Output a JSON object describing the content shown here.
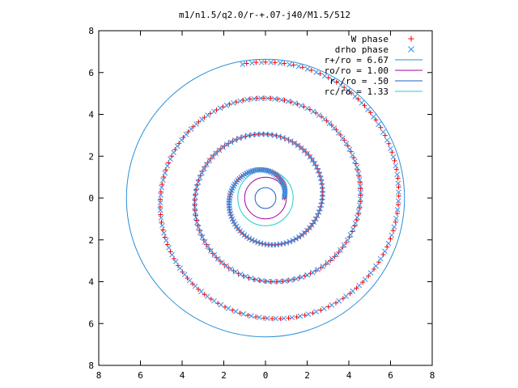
{
  "chart_data": {
    "type": "scatter",
    "title": "m1/n1.5/q2.0/r-+.07-j40/M1.5/512",
    "xlabel": "",
    "ylabel": "",
    "xlim": [
      -8,
      8
    ],
    "ylim": [
      -8,
      8
    ],
    "x_ticks": [
      {
        "value": -8,
        "label": "8"
      },
      {
        "value": -6,
        "label": "6"
      },
      {
        "value": -4,
        "label": "4"
      },
      {
        "value": -2,
        "label": "2"
      },
      {
        "value": 0,
        "label": "0"
      },
      {
        "value": 2,
        "label": "2"
      },
      {
        "value": 4,
        "label": "4"
      },
      {
        "value": 6,
        "label": "6"
      },
      {
        "value": 8,
        "label": "8"
      }
    ],
    "y_ticks": [
      {
        "value": 8,
        "label": "8"
      },
      {
        "value": 6,
        "label": "6"
      },
      {
        "value": 4,
        "label": "4"
      },
      {
        "value": 2,
        "label": "2"
      },
      {
        "value": 0,
        "label": "0"
      },
      {
        "value": -2,
        "label": "2"
      },
      {
        "value": -4,
        "label": "4"
      },
      {
        "value": -6,
        "label": "6"
      },
      {
        "value": -8,
        "label": "8"
      }
    ],
    "grid": false,
    "legend_position": "top-right",
    "spiral_series": [
      {
        "name": "W phase",
        "marker": "+",
        "color": "#ff0000",
        "phase_shift": 0
      },
      {
        "name": "drho phase",
        "marker": "x",
        "color": "#3a8ee6",
        "phase_shift": 0.03
      }
    ],
    "spiral_model": {
      "theta_start": 0,
      "theta_end": 20.6,
      "r_inner": 0.9,
      "r_outer": 6.62,
      "center_shift": [
        0.28,
        -0.08
      ],
      "samples": 300
    },
    "circle_series": [
      {
        "name": "r+/ro = 6.67",
        "radius": 6.67,
        "color": "#2a8fd6"
      },
      {
        "name": "ro/ro = 1.00",
        "radius": 1.0,
        "color": "#a000a0"
      },
      {
        "name": "r-/ro = .50",
        "radius": 0.5,
        "color": "#1e5fc8"
      },
      {
        "name": "rc/ro = 1.33",
        "radius": 1.33,
        "color": "#22cccc"
      }
    ]
  }
}
